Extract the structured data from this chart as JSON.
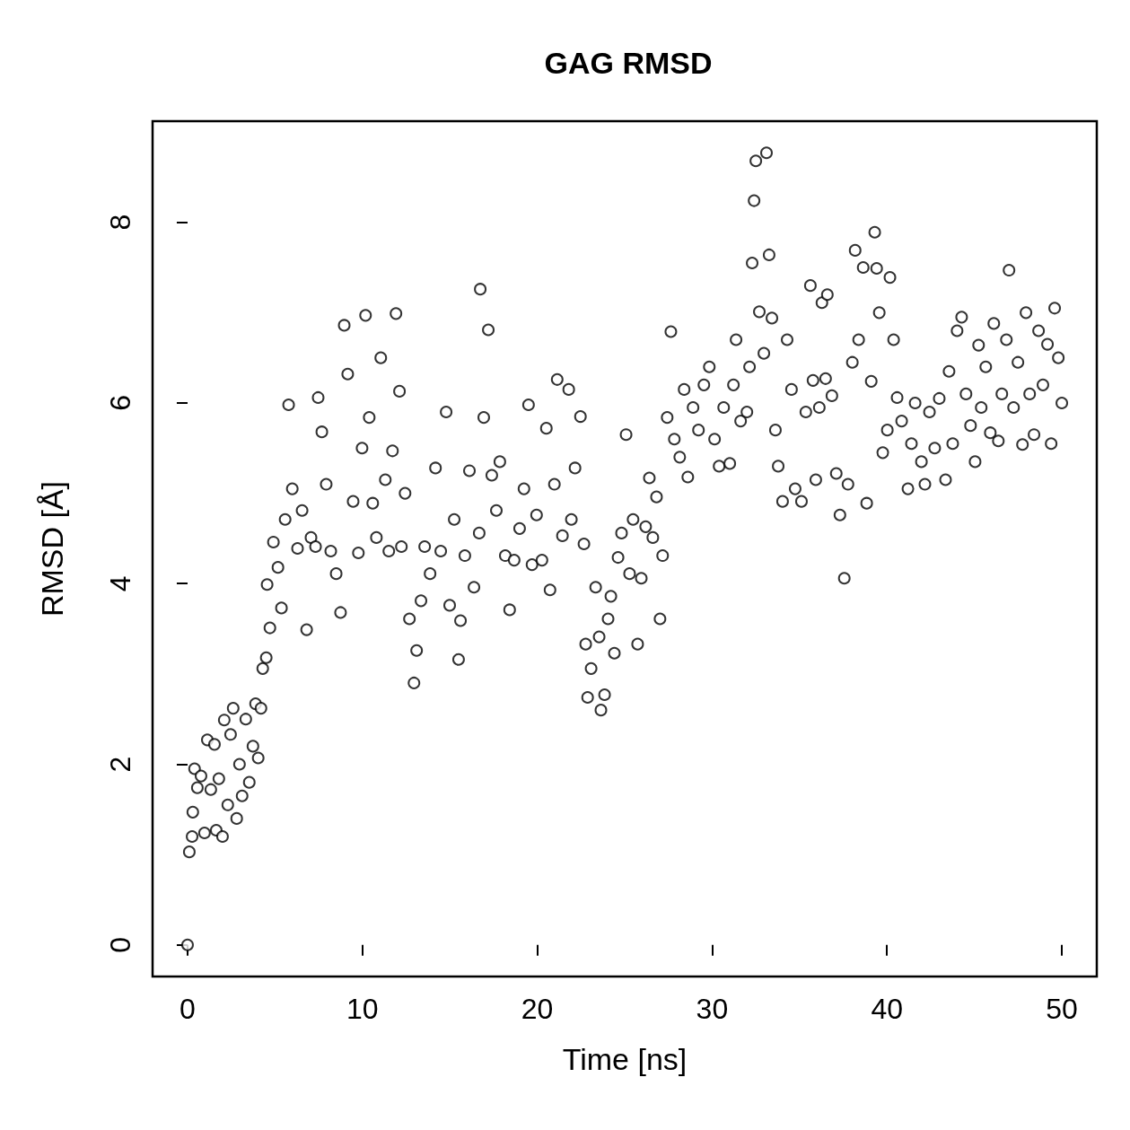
{
  "chart_data": {
    "type": "scatter",
    "title": "GAG RMSD",
    "xlabel": "Time [ns]",
    "ylabel": "RMSD [Å]",
    "xlim": [
      -2,
      52
    ],
    "xticks": [
      0,
      10,
      20,
      30,
      40,
      50
    ],
    "ylim": [
      -0.35,
      9.12
    ],
    "yticks": [
      0,
      2,
      4,
      6,
      8
    ],
    "grid": false,
    "marker": "circle",
    "series": [
      {
        "color": "#000000",
        "x": [
          0,
          0.1,
          0.26,
          0.3,
          0.4,
          0.56,
          0.77,
          0.97,
          1.13,
          1.33,
          1.54,
          1.64,
          1.79,
          2.0,
          2.1,
          2.3,
          2.46,
          2.61,
          2.81,
          2.97,
          3.12,
          3.33,
          3.53,
          3.74,
          3.89,
          4.04,
          4.2,
          4.3,
          4.5,
          4.55,
          4.71,
          4.91,
          5.17,
          5.37,
          5.58,
          5.78,
          5.99,
          6.29,
          6.55,
          6.81,
          7.06,
          7.32,
          7.47,
          7.68,
          7.93,
          8.19,
          8.5,
          8.75,
          8.96,
          9.16,
          9.47,
          9.77,
          9.98,
          10.18,
          10.39,
          10.59,
          10.8,
          11.05,
          11.31,
          11.51,
          11.72,
          11.92,
          12.12,
          12.23,
          12.44,
          12.69,
          12.95,
          13.1,
          13.35,
          13.56,
          13.87,
          14.18,
          14.48,
          14.79,
          14.99,
          15.25,
          15.5,
          15.61,
          15.86,
          16.12,
          16.38,
          16.68,
          16.74,
          16.94,
          17.2,
          17.4,
          17.66,
          17.86,
          18.17,
          18.42,
          18.68,
          18.99,
          19.24,
          19.5,
          19.7,
          19.96,
          20.27,
          20.52,
          20.73,
          20.98,
          21.14,
          21.44,
          21.8,
          21.95,
          22.16,
          22.47,
          22.67,
          22.77,
          22.88,
          23.08,
          23.34,
          23.54,
          23.64,
          23.85,
          24.05,
          24.21,
          24.41,
          24.62,
          24.82,
          25.08,
          25.28,
          25.48,
          25.74,
          25.95,
          26.2,
          26.41,
          26.61,
          26.82,
          27.02,
          27.17,
          27.43,
          27.64,
          27.84,
          28.15,
          28.4,
          28.61,
          28.91,
          29.22,
          29.53,
          29.84,
          30.14,
          30.4,
          30.66,
          31.01,
          31.22,
          31.37,
          31.63,
          31.99,
          32.14,
          32.29,
          32.4,
          32.5,
          32.7,
          32.96,
          33.11,
          33.26,
          33.42,
          33.62,
          33.78,
          34.03,
          34.29,
          34.54,
          34.75,
          35.11,
          35.36,
          35.62,
          35.77,
          35.93,
          36.13,
          36.28,
          36.49,
          36.59,
          36.85,
          37.1,
          37.31,
          37.56,
          37.77,
          38.02,
          38.18,
          38.38,
          38.64,
          38.84,
          39.1,
          39.3,
          39.41,
          39.56,
          39.76,
          40.02,
          40.17,
          40.38,
          40.58,
          40.84,
          41.2,
          41.4,
          41.61,
          41.97,
          42.17,
          42.43,
          42.73,
          42.99,
          43.35,
          43.55,
          43.76,
          44.01,
          44.27,
          44.52,
          44.78,
          45.04,
          45.24,
          45.39,
          45.65,
          45.91,
          46.11,
          46.37,
          46.57,
          46.83,
          46.98,
          47.24,
          47.49,
          47.75,
          47.95,
          48.16,
          48.41,
          48.67,
          48.92,
          49.18,
          49.39,
          49.59,
          49.8,
          50
        ],
        "values": [
          0,
          1.03,
          1.2,
          1.47,
          1.95,
          1.74,
          1.87,
          1.24,
          2.27,
          1.72,
          2.22,
          1.27,
          1.84,
          1.2,
          2.49,
          1.55,
          2.33,
          2.62,
          1.4,
          2.0,
          1.65,
          2.5,
          1.8,
          2.2,
          2.67,
          2.07,
          2.62,
          3.06,
          3.18,
          3.99,
          3.51,
          4.46,
          4.18,
          3.73,
          4.71,
          5.98,
          5.05,
          4.39,
          4.81,
          3.49,
          4.51,
          4.41,
          6.06,
          5.68,
          5.1,
          4.36,
          4.11,
          3.68,
          6.86,
          6.32,
          4.91,
          4.34,
          5.5,
          6.97,
          5.84,
          4.89,
          4.51,
          6.5,
          5.15,
          4.36,
          5.47,
          6.99,
          6.13,
          4.41,
          5.0,
          3.61,
          2.9,
          3.26,
          3.81,
          4.41,
          4.11,
          5.28,
          4.36,
          5.9,
          3.76,
          4.71,
          3.16,
          3.59,
          4.31,
          5.25,
          3.96,
          4.56,
          7.26,
          5.84,
          6.81,
          5.2,
          4.81,
          5.35,
          4.31,
          3.71,
          4.26,
          4.61,
          5.05,
          5.98,
          4.21,
          4.76,
          4.26,
          5.72,
          3.93,
          5.1,
          6.26,
          4.53,
          6.15,
          4.71,
          5.28,
          5.85,
          4.44,
          3.33,
          2.74,
          3.06,
          3.96,
          3.41,
          2.6,
          2.77,
          3.61,
          3.86,
          3.23,
          4.29,
          4.56,
          5.65,
          4.11,
          4.71,
          3.33,
          4.06,
          4.63,
          5.17,
          4.51,
          4.96,
          3.61,
          4.31,
          5.84,
          6.79,
          5.6,
          5.4,
          6.15,
          5.18,
          5.95,
          5.7,
          6.2,
          6.4,
          5.6,
          5.3,
          5.95,
          5.33,
          6.2,
          6.7,
          5.8,
          5.9,
          6.4,
          7.55,
          8.24,
          8.68,
          7.01,
          6.55,
          8.77,
          7.64,
          6.94,
          5.7,
          5.3,
          4.91,
          6.7,
          6.15,
          5.05,
          4.91,
          5.9,
          7.3,
          6.25,
          5.15,
          5.95,
          7.11,
          6.27,
          7.2,
          6.08,
          5.22,
          4.76,
          4.06,
          5.1,
          6.45,
          7.69,
          6.7,
          7.5,
          4.89,
          6.24,
          7.89,
          7.49,
          7.0,
          5.45,
          5.7,
          7.39,
          6.7,
          6.06,
          5.8,
          5.05,
          5.55,
          6.0,
          5.35,
          5.1,
          5.9,
          5.5,
          6.05,
          5.15,
          6.35,
          5.55,
          6.8,
          6.95,
          6.1,
          5.75,
          5.35,
          6.64,
          5.95,
          6.4,
          5.67,
          6.88,
          5.58,
          6.1,
          6.7,
          7.47,
          5.95,
          6.45,
          5.54,
          7.0,
          6.1,
          5.65,
          6.8,
          6.2,
          6.65,
          5.55,
          7.05,
          6.5,
          6.0
        ]
      }
    ]
  }
}
